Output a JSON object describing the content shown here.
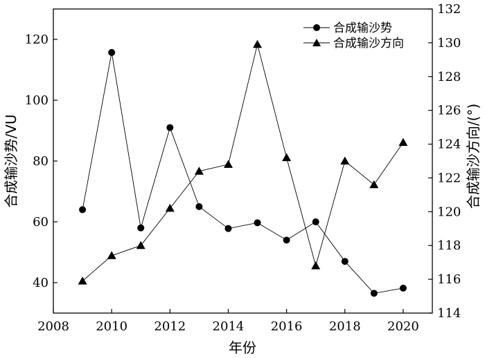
{
  "chart_data": {
    "type": "line",
    "xlabel": "年份",
    "ylabel_left": "合成输沙势/VU",
    "ylabel_right": "合成输沙方向/(°)",
    "xlim": [
      2008,
      2021
    ],
    "ylim_left": [
      30,
      130
    ],
    "ylim_right": [
      114,
      132
    ],
    "x_ticks": [
      2008,
      2010,
      2012,
      2014,
      2016,
      2018,
      2020
    ],
    "y_left_ticks": [
      40,
      60,
      80,
      100,
      120
    ],
    "y_right_ticks": [
      114,
      116,
      118,
      120,
      122,
      124,
      126,
      128,
      130,
      132
    ],
    "legend_position": "top-right",
    "grid": false,
    "series": [
      {
        "name": "合成输沙势",
        "marker": "circle",
        "axis": "left",
        "x": [
          2009,
          2010,
          2011,
          2012,
          2013,
          2014,
          2015,
          2016,
          2017,
          2018,
          2019,
          2020
        ],
        "values": [
          64.0,
          115.7,
          58.0,
          91.0,
          65.0,
          57.8,
          59.7,
          54.0,
          60.0,
          47.0,
          36.5,
          38.2
        ]
      },
      {
        "name": "合成输沙方向",
        "marker": "triangle",
        "axis": "right",
        "x": [
          2009,
          2010,
          2011,
          2012,
          2013,
          2014,
          2015,
          2016,
          2017,
          2018,
          2019,
          2020
        ],
        "values": [
          115.9,
          117.4,
          118.0,
          120.2,
          122.4,
          122.8,
          129.9,
          123.2,
          116.8,
          123.0,
          121.6,
          124.1
        ]
      }
    ]
  }
}
